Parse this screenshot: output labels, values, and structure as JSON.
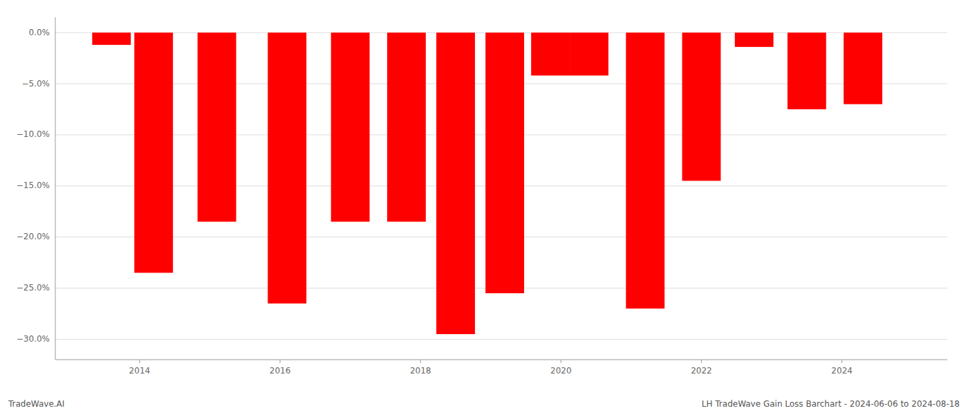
{
  "chart_data": {
    "type": "bar",
    "x": [
      2013.6,
      2014.2,
      2015.1,
      2016.1,
      2017.0,
      2017.8,
      2018.5,
      2019.2,
      2019.85,
      2020.4,
      2021.2,
      2022.0,
      2022.75,
      2023.5,
      2024.3
    ],
    "values": [
      -1.2,
      -23.5,
      -18.5,
      -26.5,
      -18.5,
      -18.5,
      -29.5,
      -25.5,
      -4.2,
      -4.2,
      -27.0,
      -14.5,
      -1.4,
      -7.5,
      -7.0
    ],
    "color": "#ff0000",
    "xlim": [
      2012.8,
      2025.5
    ],
    "xticks": [
      2014,
      2016,
      2018,
      2020,
      2022,
      2024
    ],
    "ylim": [
      -32,
      1.5
    ],
    "yticks": [
      {
        "value": 0.0,
        "label": "0.0%"
      },
      {
        "value": -5.0,
        "label": "−5.0%"
      },
      {
        "value": -10.0,
        "label": "−10.0%"
      },
      {
        "value": -15.0,
        "label": "−15.0%"
      },
      {
        "value": -20.0,
        "label": "−20.0%"
      },
      {
        "value": -25.0,
        "label": "−25.0%"
      },
      {
        "value": -30.0,
        "label": "−30.0%"
      }
    ],
    "grid": true,
    "annotations": [
      "TradeWave.AI",
      "LH TradeWave Gain Loss Barchart - 2024-06-06 to 2024-08-18"
    ]
  }
}
